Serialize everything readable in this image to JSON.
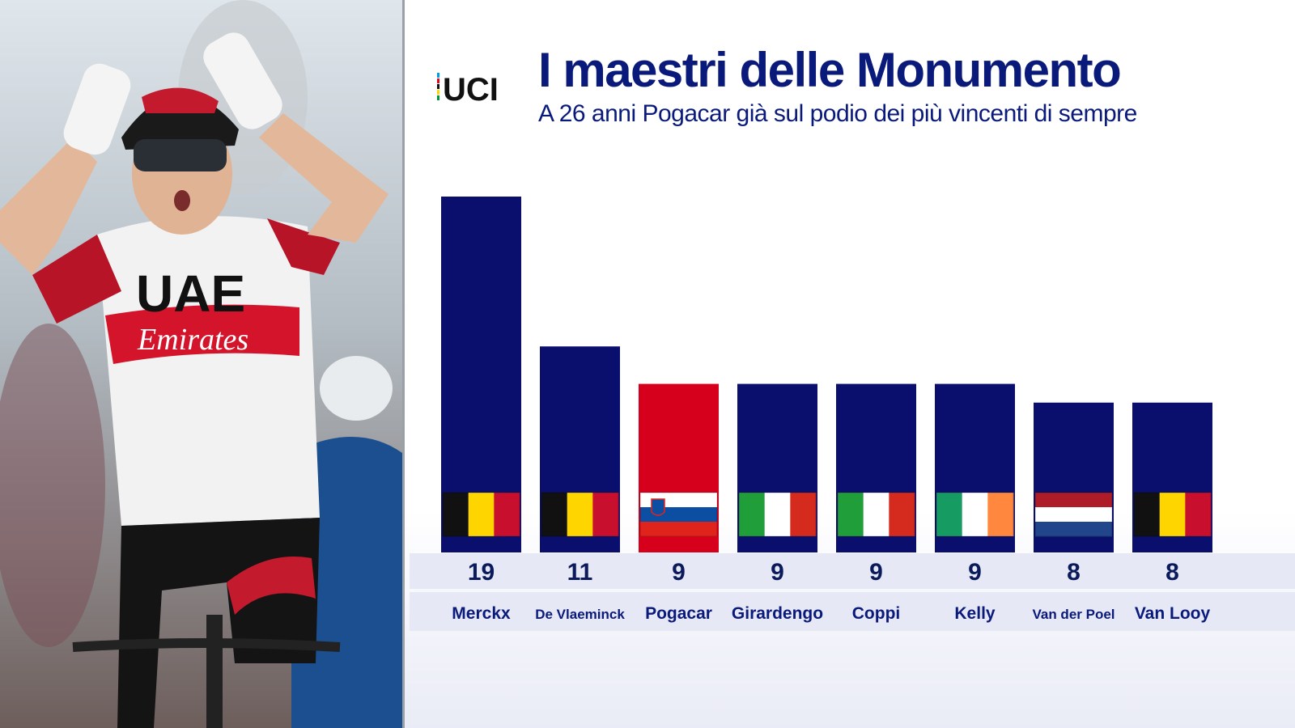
{
  "header": {
    "title": "I maestri delle Monumento",
    "subtitle": "A 26 anni Pogacar già sul podio dei più vincenti di sempre",
    "logo_text": "UCI"
  },
  "photo": {
    "description_icon": "cyclist-photo",
    "jersey_text_1": "UAE",
    "jersey_text_2": "Emirates"
  },
  "colors": {
    "title": "#0a1a7a",
    "bar_default": "#0a0f6e",
    "bar_highlight": "#d6001c",
    "band": "#e6e8f5"
  },
  "chart_data": {
    "type": "bar",
    "title": "I maestri delle Monumento",
    "subtitle": "A 26 anni Pogacar già sul podio dei più vincenti di sempre",
    "categories": [
      "Merckx",
      "De Vlaeminck",
      "Pogacar",
      "Girardengo",
      "Coppi",
      "Kelly",
      "Van der Poel",
      "Van Looy"
    ],
    "values": [
      19,
      11,
      9,
      9,
      9,
      9,
      8,
      8
    ],
    "value_labels": [
      "19",
      "11",
      "9",
      "9",
      "9",
      "9",
      "8",
      "8"
    ],
    "flags": [
      "belgium",
      "belgium",
      "slovenia",
      "italy",
      "italy",
      "ireland",
      "netherlands",
      "belgium"
    ],
    "highlight": "Pogacar",
    "xlabel": "",
    "ylabel": "",
    "grid": false,
    "legend": "none"
  }
}
